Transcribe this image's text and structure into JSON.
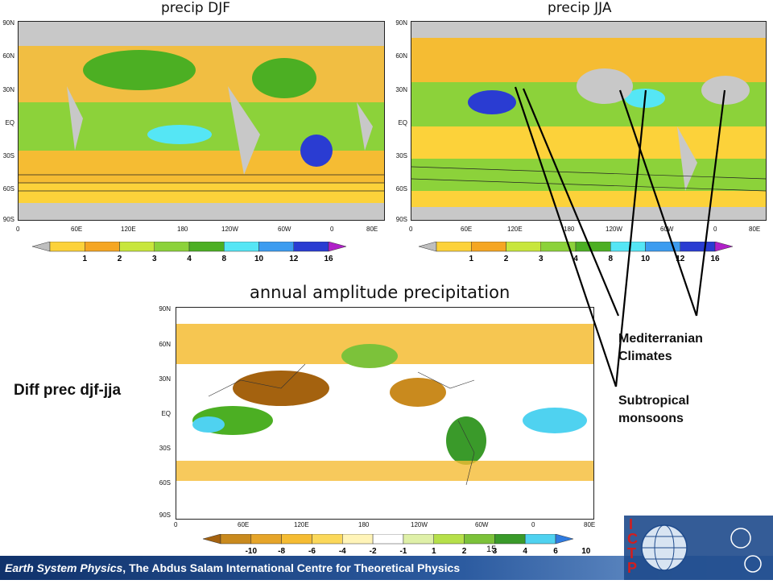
{
  "panels": {
    "top_left_title": "precip DJF",
    "top_right_title": "precip JJA",
    "bottom_title": "annual amplitude precipitation"
  },
  "lat_labels": [
    "90N",
    "60N",
    "30N",
    "EQ",
    "30S",
    "60S",
    "90S"
  ],
  "lon_labels": [
    "0",
    "60E",
    "120E",
    "180",
    "120W",
    "60W",
    "0",
    "80E"
  ],
  "colorbar_top": {
    "ticks": [
      "1",
      "2",
      "3",
      "4",
      "8",
      "10",
      "12",
      "16"
    ],
    "colors": [
      "#bfbfbf",
      "#fcd23a",
      "#f5a623",
      "#c8e63c",
      "#8cd23a",
      "#4caf23",
      "#55e6f5",
      "#3c9cf0",
      "#2a3cd2",
      "#b020c8"
    ]
  },
  "colorbar_bottom": {
    "ticks": [
      "-10",
      "-8",
      "-6",
      "-4",
      "-2",
      "-1",
      "1",
      "2",
      "3",
      "4",
      "6",
      "10"
    ],
    "colors": [
      "#a4620f",
      "#c98a1e",
      "#e6a52a",
      "#f5bc33",
      "#fbd85a",
      "#fff4b8",
      "#ffffff",
      "#dff0a8",
      "#b6e04a",
      "#7cc23a",
      "#3a9a2a",
      "#4fd2f0",
      "#2f7be0"
    ],
    "vector_label": "15"
  },
  "annotations": {
    "left_label": "Diff prec djf-jja",
    "mediterranean": "Mediterranian\nClimates",
    "monsoon": "Subtropical\nmonsoons"
  },
  "footer": {
    "italic": "Earth System Physics",
    "rest": ", The Abdus Salam International Centre for Theoretical Physics"
  },
  "logos": {
    "ictp_letters": [
      "I",
      "C",
      "T",
      "P"
    ]
  },
  "colors": {
    "land_gray": "#c8c8c8",
    "footer_blue": "#1e4a8c",
    "logo_red": "#d21e1e"
  }
}
